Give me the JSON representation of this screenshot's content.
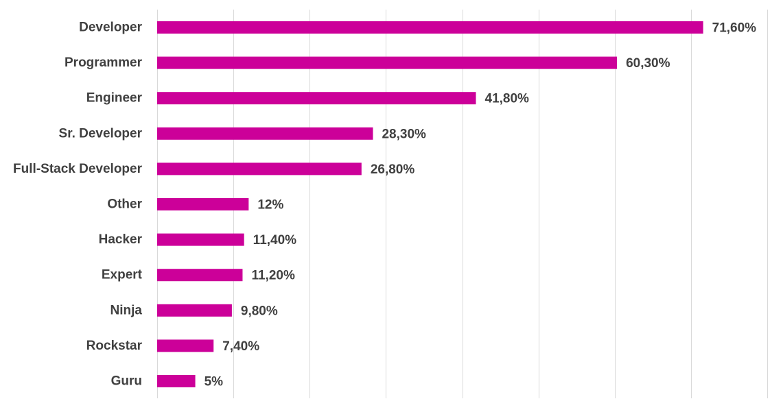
{
  "chart_data": {
    "type": "bar",
    "orientation": "horizontal",
    "title": "",
    "xlabel": "",
    "ylabel": "",
    "categories": [
      "Developer",
      "Programmer",
      "Engineer",
      "Sr. Developer",
      "Full-Stack Developer",
      "Other",
      "Hacker",
      "Expert",
      "Ninja",
      "Rockstar",
      "Guru"
    ],
    "values": [
      71.6,
      60.3,
      41.8,
      28.3,
      26.8,
      12,
      11.4,
      11.2,
      9.8,
      7.4,
      5
    ],
    "data_labels": [
      "71,60%",
      "60,30%",
      "41,80%",
      "28,30%",
      "26,80%",
      "12%",
      "11,40%",
      "11,20%",
      "9,80%",
      "7,40%",
      "5%"
    ],
    "xlim": [
      0,
      80
    ],
    "grid_step": 10,
    "grid": true,
    "legend": false,
    "bar_color": "#cc0099",
    "text_color": "#404040",
    "grid_color": "#d9d9d9"
  }
}
